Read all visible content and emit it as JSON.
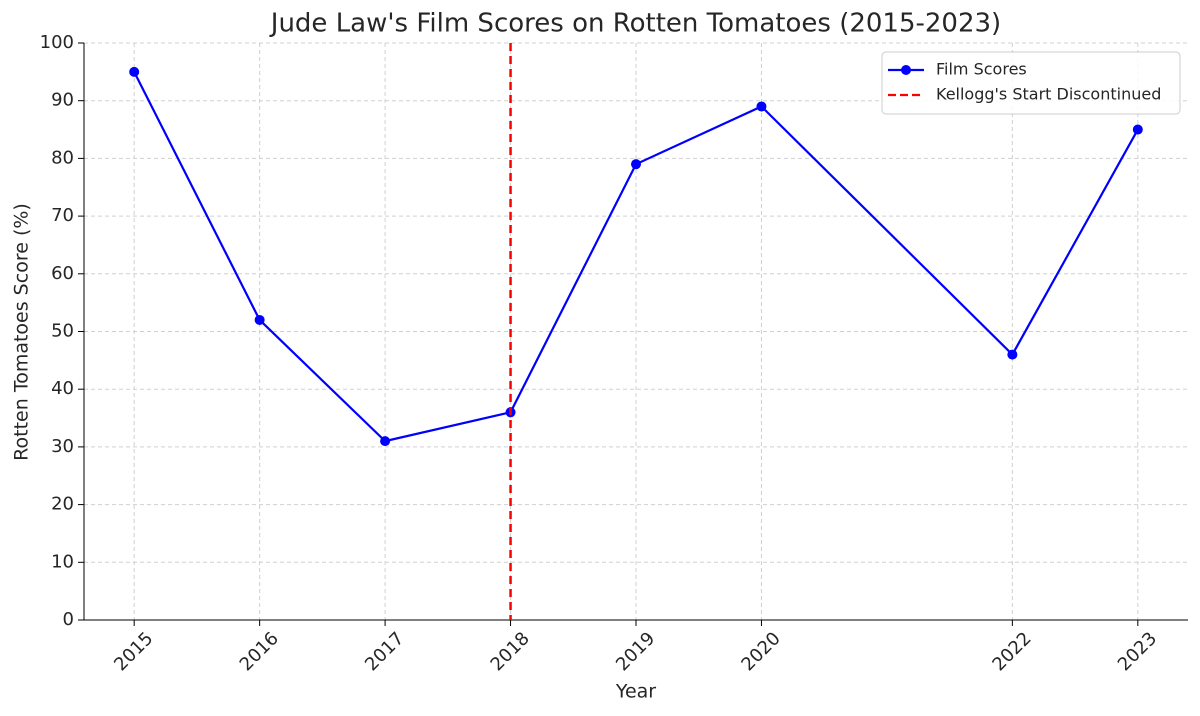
{
  "chart_data": {
    "type": "line",
    "title": "Jude Law's Film Scores on Rotten Tomatoes (2015-2023)",
    "x_label": "Year",
    "y_label": "Rotten Tomatoes Score (%)",
    "x": [
      2015,
      2016,
      2017,
      2018,
      2019,
      2020,
      2022,
      2023
    ],
    "series": [
      {
        "name": "Film Scores",
        "color": "#0000ff",
        "values": [
          95,
          52,
          31,
          36,
          79,
          89,
          46,
          85
        ]
      }
    ],
    "vline": {
      "name": "Kellogg's Start Discontinued",
      "value": 2018,
      "color": "#ff0000"
    },
    "xlim": [
      2014.6,
      2023.4
    ],
    "xticks": [
      2015,
      2016,
      2017,
      2018,
      2019,
      2020,
      2022,
      2023
    ],
    "ylim": [
      0,
      100
    ],
    "yticks": [
      0,
      10,
      20,
      30,
      40,
      50,
      60,
      70,
      80,
      90,
      100
    ],
    "grid": true,
    "legend": "upper right"
  }
}
